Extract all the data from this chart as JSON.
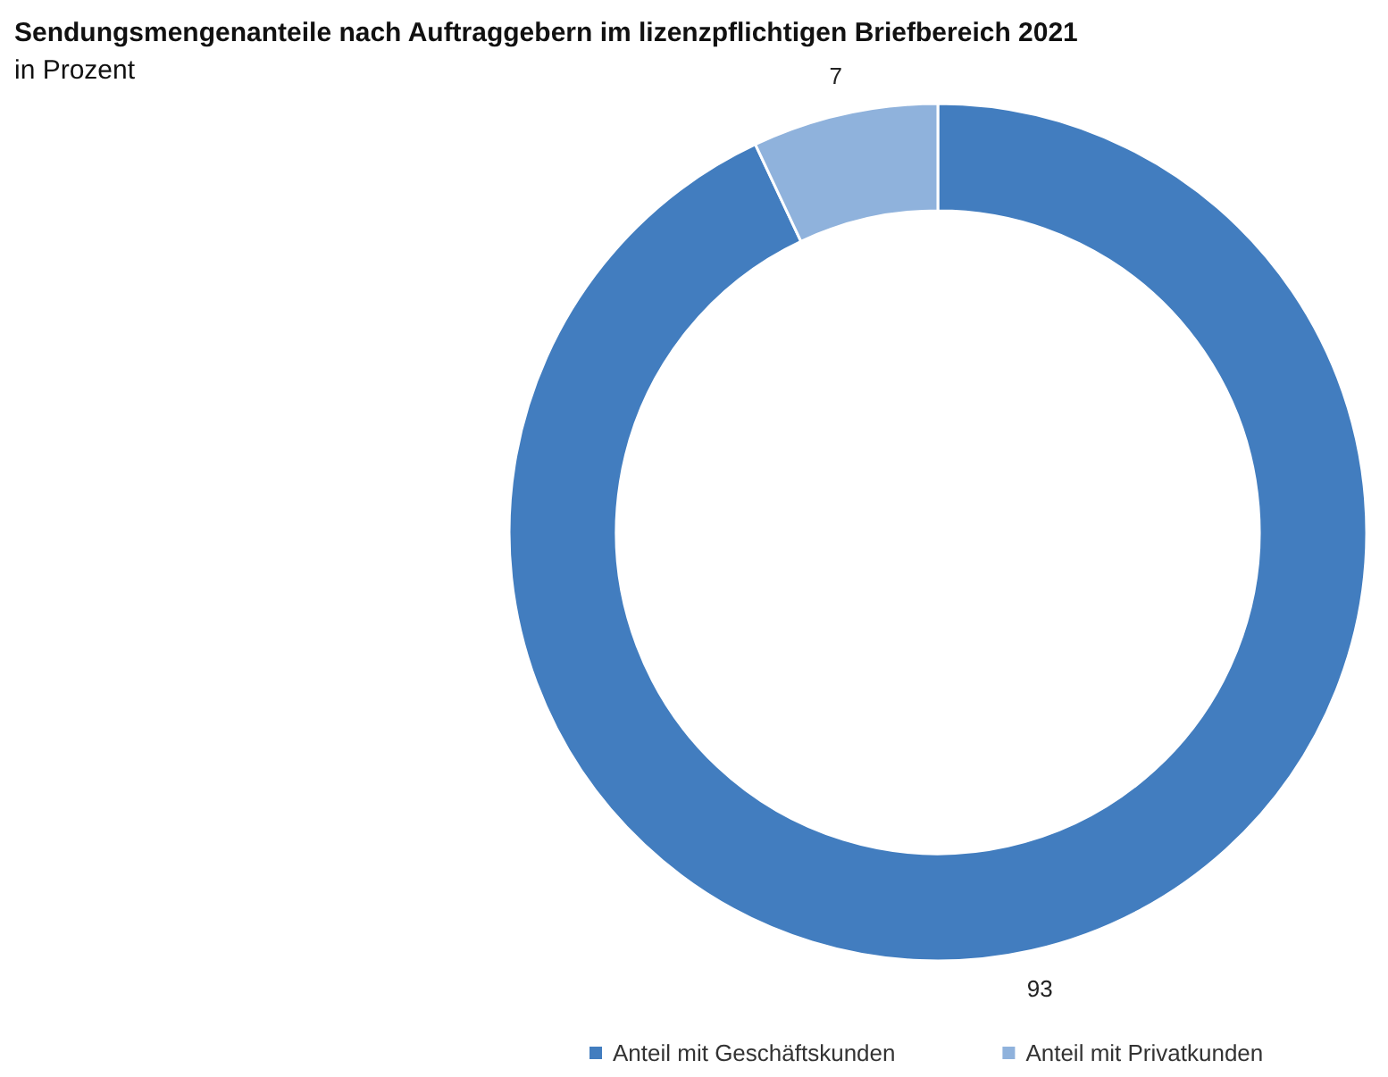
{
  "chart_data": {
    "type": "donut",
    "title": "Sendungsmengenanteile nach Auftraggebern im lizenzpflichtigen Briefbereich 2021",
    "subtitle": "in Prozent",
    "categories": [
      "Anteil mit Geschäftskunden",
      "Anteil mit Privatkunden"
    ],
    "values": [
      93,
      7
    ],
    "colors": [
      "#427dbf",
      "#8fb2dc"
    ],
    "data_labels": true,
    "legend": "bottom right"
  }
}
